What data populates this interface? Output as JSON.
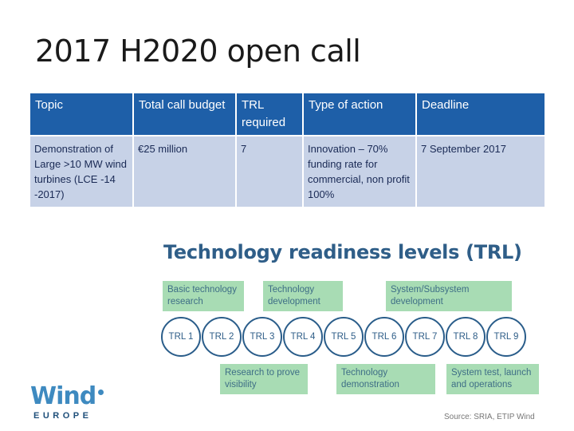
{
  "title": "2017 H2020 open call",
  "table": {
    "headers": [
      "Topic",
      "Total call budget",
      "TRL required",
      "Type of action",
      "Deadline"
    ],
    "row": [
      "Demonstration of Large >10 MW wind turbines (LCE -14 -2017)",
      "€25 million",
      "7",
      "Innovation – 70% funding rate for commercial, non profit 100%",
      "7 September 2017"
    ]
  },
  "trl_figure": {
    "title": "Technology readiness levels (TRL)",
    "top_labels": [
      "Basic technology research",
      "Technology development",
      "System/Subsystem development"
    ],
    "levels": [
      "TRL 1",
      "TRL 2",
      "TRL 3",
      "TRL 4",
      "TRL 5",
      "TRL 6",
      "TRL 7",
      "TRL 8",
      "TRL 9"
    ],
    "bottom_labels": [
      "Research to prove visibility",
      "Technology demonstration",
      "System test, launch and operations"
    ],
    "colors": {
      "box": "#a8dcb4",
      "circle_border": "#2a5d8a",
      "text": "#2f5e88"
    },
    "source": "Source: SRIA, ETIP Wind"
  },
  "logo": {
    "word": "Wind",
    "sub": "EUROPE"
  }
}
